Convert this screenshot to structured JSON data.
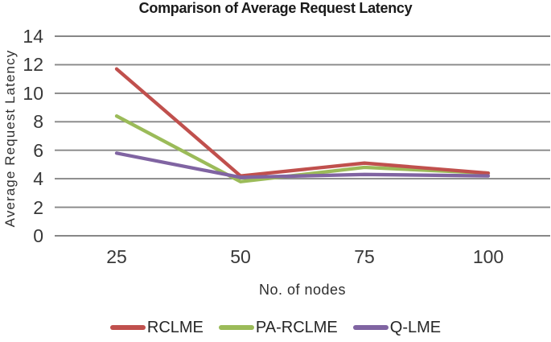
{
  "chart_data": {
    "type": "line",
    "title": "Comparison of Average Request Latency",
    "xlabel": "No. of nodes",
    "ylabel": "Average Request Latency",
    "categories": [
      "25",
      "50",
      "75",
      "100"
    ],
    "series": [
      {
        "name": "RCLME",
        "color": "#C0504D",
        "values": [
          11.7,
          4.2,
          5.1,
          4.4
        ]
      },
      {
        "name": "PA-RCLME",
        "color": "#9BBB59",
        "values": [
          8.4,
          3.8,
          4.8,
          4.4
        ]
      },
      {
        "name": "Q-LME",
        "color": "#8064A2",
        "values": [
          5.8,
          4.1,
          4.3,
          4.2
        ]
      }
    ],
    "yticks": [
      0,
      2,
      4,
      6,
      8,
      10,
      12,
      14
    ],
    "ylim": [
      0,
      14
    ],
    "grid": "horizontal",
    "gridline_color": "#878787",
    "legend_position": "bottom"
  }
}
